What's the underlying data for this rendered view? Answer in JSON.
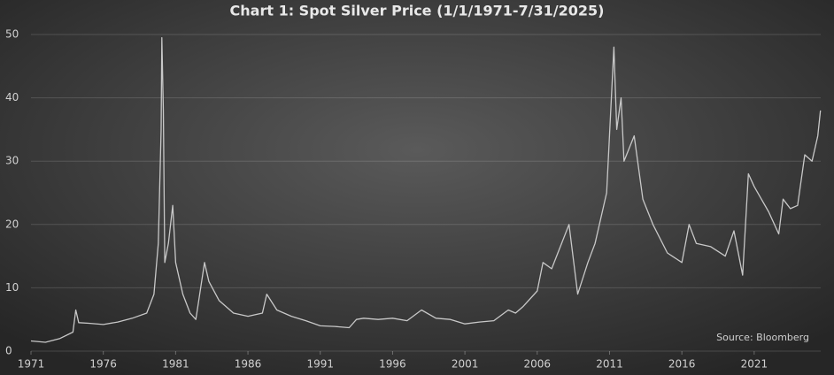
{
  "chart_data": {
    "type": "line",
    "title": "Chart 1: Spot Silver Price (1/1/1971-7/31/2025)",
    "annotation": "Source: Bloomberg",
    "x": [
      1971,
      1972,
      1973,
      1973.9,
      1974.1,
      1974.3,
      1975,
      1976,
      1977,
      1978,
      1979,
      1979.5,
      1979.8,
      1980.0,
      1980.05,
      1980.15,
      1980.25,
      1980.5,
      1980.8,
      1981,
      1981.5,
      1982,
      1982.4,
      1982.6,
      1983,
      1983.3,
      1984,
      1985,
      1986,
      1987,
      1987.3,
      1988,
      1989,
      1990,
      1991,
      1992,
      1993,
      1993.5,
      1994,
      1995,
      1996,
      1997,
      1998,
      1999,
      2000,
      2001,
      2002,
      2003,
      2004,
      2004.5,
      2005,
      2006,
      2006.4,
      2007,
      2008.2,
      2008.8,
      2009.5,
      2010,
      2010.8,
      2011.3,
      2011.5,
      2011.8,
      2012,
      2012.7,
      2013.3,
      2014,
      2015,
      2016,
      2016.5,
      2017,
      2018,
      2019,
      2019.6,
      2020.2,
      2020.6,
      2021,
      2021.5,
      2022,
      2022.7,
      2023,
      2023.5,
      2024,
      2024.5,
      2025,
      2025.4,
      2025.58
    ],
    "series": [
      {
        "name": "Spot Silver",
        "color": "#c8c8c8",
        "values": [
          1.6,
          1.4,
          2.0,
          3.0,
          6.5,
          4.5,
          4.4,
          4.2,
          4.6,
          5.2,
          6.0,
          9,
          17,
          35,
          49.5,
          38,
          14,
          17,
          23,
          14,
          9,
          6,
          5,
          8,
          14,
          11,
          8,
          6,
          5.5,
          6,
          9,
          6.5,
          5.5,
          4.8,
          4,
          3.9,
          3.7,
          5,
          5.2,
          5,
          5.2,
          4.8,
          6.5,
          5.2,
          5,
          4.3,
          4.6,
          4.8,
          6.5,
          6,
          7,
          9.5,
          14,
          13,
          20,
          9,
          14,
          17,
          25,
          48,
          35,
          40,
          30,
          34,
          24,
          20,
          15.5,
          14,
          20,
          17,
          16.5,
          15,
          19,
          12,
          28,
          26,
          24,
          22,
          18.5,
          24,
          22.5,
          23,
          31,
          30,
          34,
          38
        ]
      }
    ],
    "xlim": [
      1971,
      2025.6
    ],
    "xticks": [
      1971,
      1976,
      1981,
      1986,
      1991,
      1996,
      2001,
      2006,
      2011,
      2016,
      2021
    ],
    "ylim": [
      0,
      50
    ],
    "yticks": [
      0,
      10,
      20,
      30,
      40,
      50
    ],
    "grid": true
  }
}
